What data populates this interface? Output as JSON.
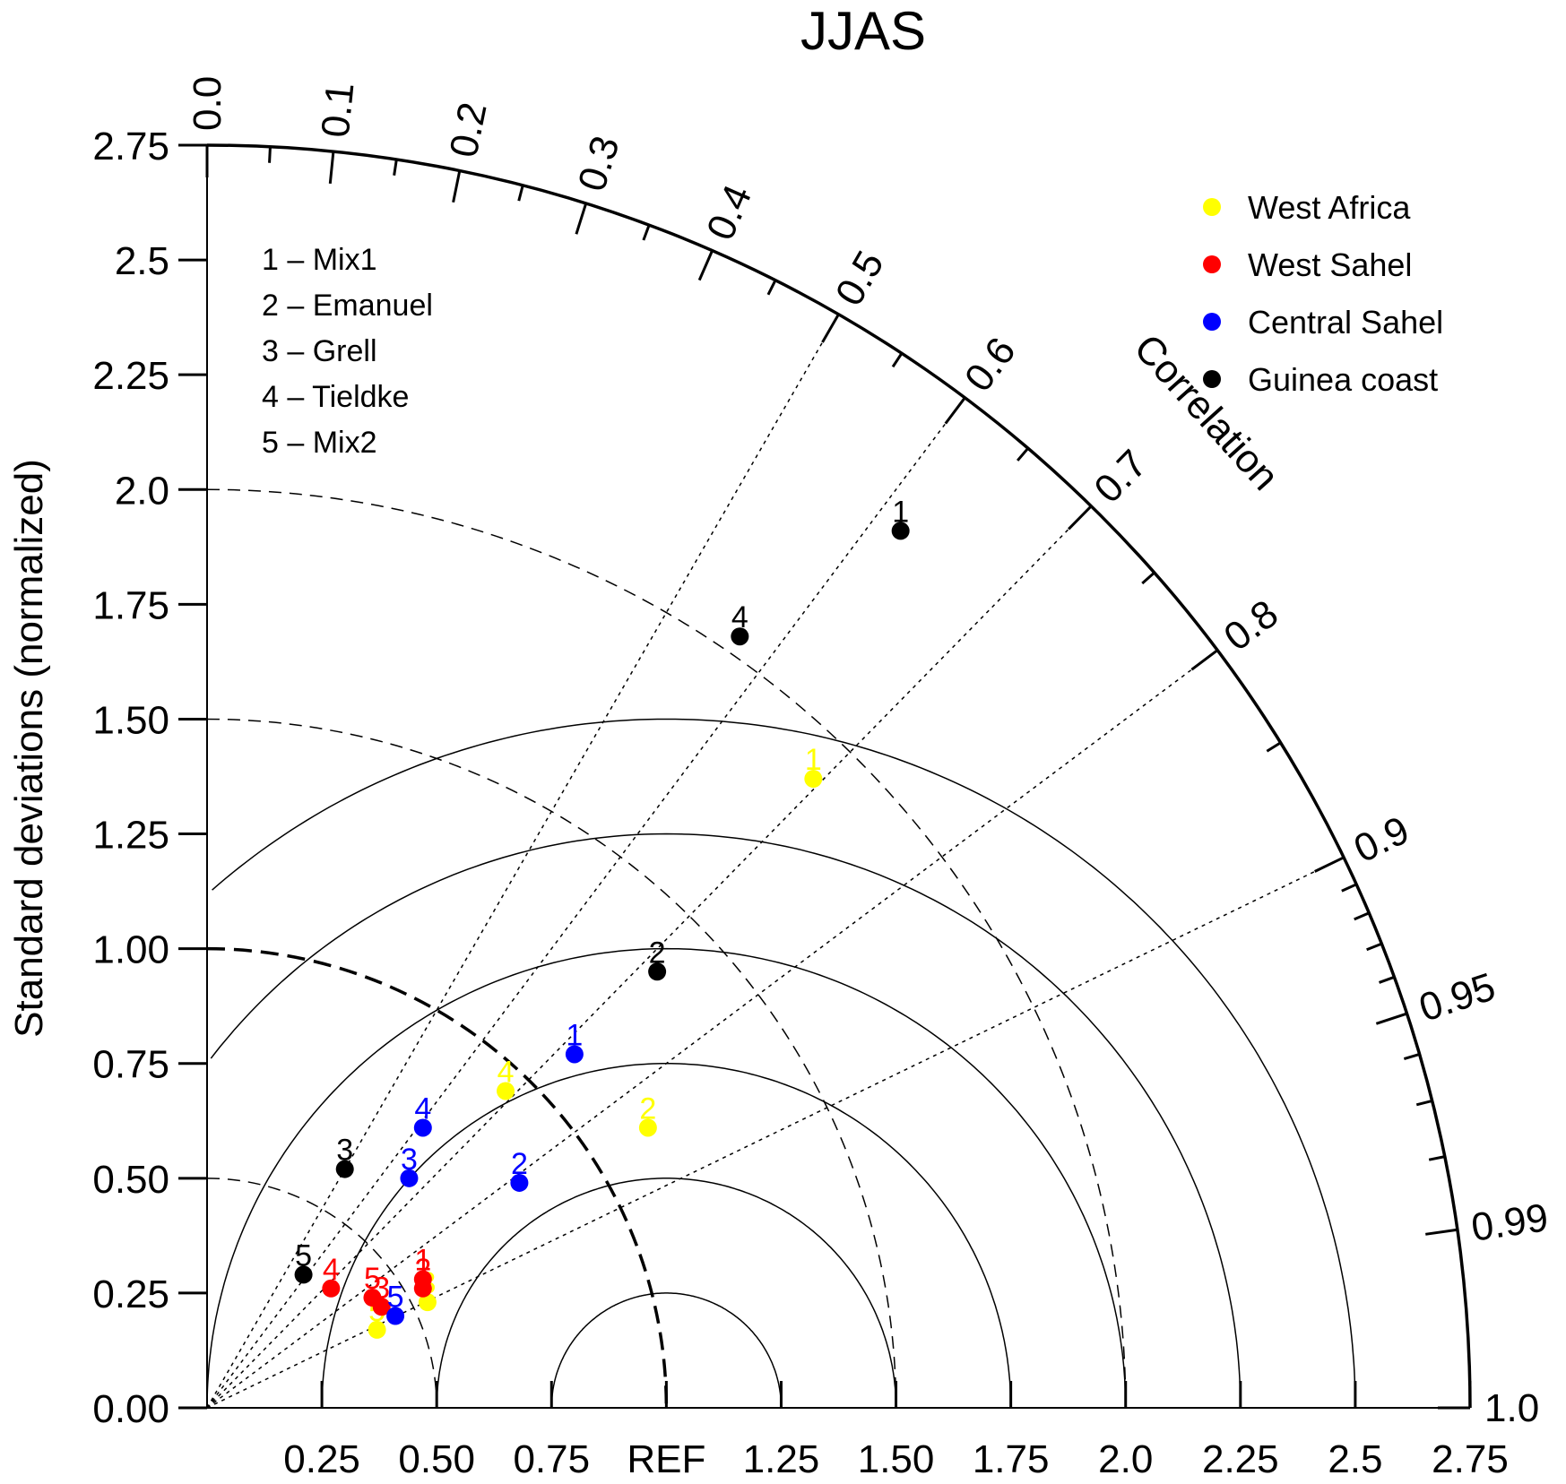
{
  "chart_data": {
    "type": "scatter",
    "subtype": "taylor-diagram",
    "title": "JJAS",
    "ylabel": "Standard deviations (normalized)",
    "arc_label": "Correlation",
    "reference_std": 1.0,
    "ref_label": "REF",
    "std_max": 2.75,
    "std_ticks": [
      "0.00",
      "0.25",
      "0.50",
      "0.75",
      "1.00",
      "1.25",
      "1.50",
      "1.75",
      "2.0",
      "2.25",
      "2.5",
      "2.75"
    ],
    "x_ticks": [
      {
        "value": 0.25,
        "label": "0.25"
      },
      {
        "value": 0.5,
        "label": "0.50"
      },
      {
        "value": 0.75,
        "label": "0.75"
      },
      {
        "value": 1.0,
        "label": "REF"
      },
      {
        "value": 1.25,
        "label": "1.25"
      },
      {
        "value": 1.5,
        "label": "1.50"
      },
      {
        "value": 1.75,
        "label": "1.75"
      },
      {
        "value": 2.0,
        "label": "2.0"
      },
      {
        "value": 2.25,
        "label": "2.25"
      },
      {
        "value": 2.5,
        "label": "2.5"
      },
      {
        "value": 2.75,
        "label": "2.75"
      }
    ],
    "correlation_labels": [
      {
        "value": 0.0,
        "label": "0.0"
      },
      {
        "value": 0.1,
        "label": "0.1"
      },
      {
        "value": 0.2,
        "label": "0.2"
      },
      {
        "value": 0.3,
        "label": "0.3"
      },
      {
        "value": 0.4,
        "label": "0.4"
      },
      {
        "value": 0.5,
        "label": "0.5"
      },
      {
        "value": 0.6,
        "label": "0.6"
      },
      {
        "value": 0.7,
        "label": "0.7"
      },
      {
        "value": 0.8,
        "label": "0.8"
      },
      {
        "value": 0.9,
        "label": "0.9"
      },
      {
        "value": 0.95,
        "label": "0.95"
      },
      {
        "value": 0.99,
        "label": "0.99"
      },
      {
        "value": 1.0,
        "label": "1.0"
      }
    ],
    "correlation_minor_ticks": [
      0.05,
      0.15,
      0.25,
      0.35,
      0.45,
      0.55,
      0.65,
      0.75,
      0.85,
      0.91,
      0.92,
      0.93,
      0.94,
      0.96,
      0.97,
      0.98
    ],
    "correlation_radials": [
      0.5,
      0.6,
      0.7,
      0.8,
      0.9
    ],
    "std_dashed_arcs": [
      0.5,
      1.5,
      2.0
    ],
    "rms_circles": [
      0.25,
      0.5,
      0.75,
      1.0,
      1.25,
      1.5
    ],
    "model_key": [
      "1 – Mix1",
      "2 – Emanuel",
      "3 – Grell",
      "4 – Tieldke",
      "5 – Mix2"
    ],
    "series": [
      {
        "name": "West Africa",
        "color": "#ffff00",
        "points": [
          {
            "label": "1",
            "x": 1.32,
            "y": 1.37
          },
          {
            "label": "2",
            "x": 0.96,
            "y": 0.61
          },
          {
            "label": "3",
            "x": 0.48,
            "y": 0.23
          },
          {
            "label": "4",
            "x": 0.65,
            "y": 0.69
          },
          {
            "label": "5",
            "x": 0.37,
            "y": 0.17
          }
        ]
      },
      {
        "name": "West Sahel",
        "color": "#ff0000",
        "points": [
          {
            "label": "1",
            "x": 0.47,
            "y": 0.28
          },
          {
            "label": "2",
            "x": 0.47,
            "y": 0.26
          },
          {
            "label": "3",
            "x": 0.38,
            "y": 0.22
          },
          {
            "label": "4",
            "x": 0.27,
            "y": 0.26
          },
          {
            "label": "5",
            "x": 0.36,
            "y": 0.24
          }
        ]
      },
      {
        "name": "Central Sahel",
        "color": "#0000ff",
        "points": [
          {
            "label": "1",
            "x": 0.8,
            "y": 0.77
          },
          {
            "label": "2",
            "x": 0.68,
            "y": 0.49
          },
          {
            "label": "3",
            "x": 0.44,
            "y": 0.5
          },
          {
            "label": "4",
            "x": 0.47,
            "y": 0.61
          },
          {
            "label": "5",
            "x": 0.41,
            "y": 0.2
          }
        ]
      },
      {
        "name": "Guinea coast",
        "color": "#000000",
        "points": [
          {
            "label": "1",
            "x": 1.51,
            "y": 1.91
          },
          {
            "label": "2",
            "x": 0.98,
            "y": 0.95
          },
          {
            "label": "3",
            "x": 0.3,
            "y": 0.52
          },
          {
            "label": "4",
            "x": 1.16,
            "y": 1.68
          },
          {
            "label": "5",
            "x": 0.21,
            "y": 0.29
          }
        ]
      }
    ]
  }
}
